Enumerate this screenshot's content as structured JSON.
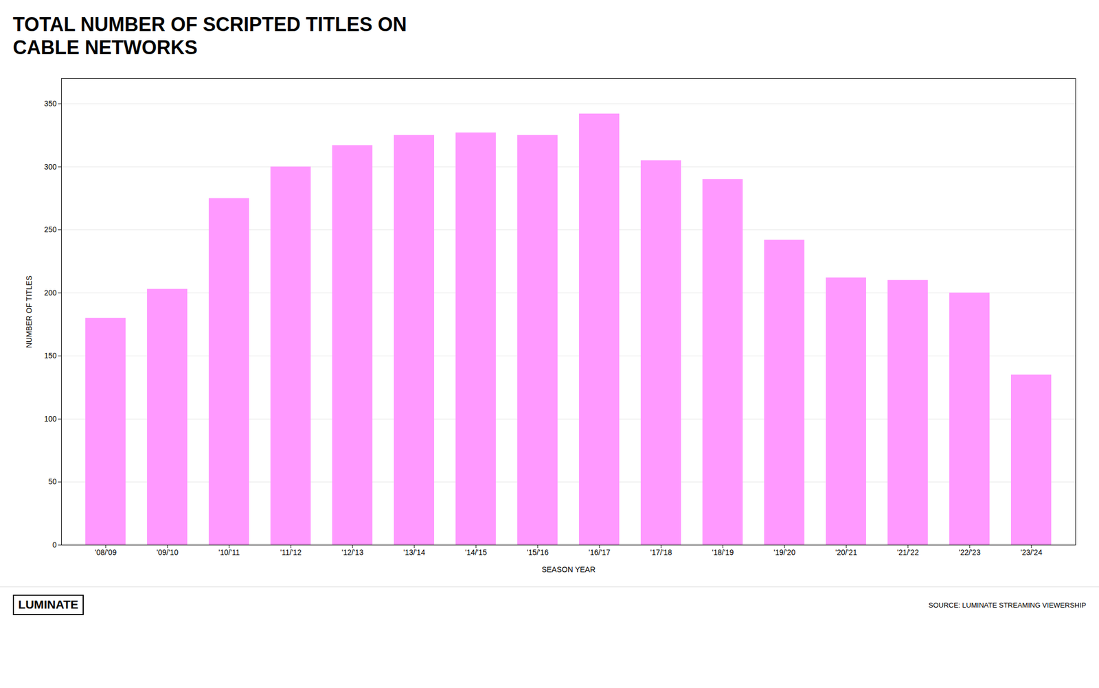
{
  "chart_data": {
    "type": "bar",
    "title": "TOTAL NUMBER OF SCRIPTED TITLES ON\nCABLE NETWORKS",
    "xlabel": "SEASON YEAR",
    "ylabel": "NUMBER OF TITLES",
    "categories": [
      "'08/'09",
      "'09/'10",
      "'10/'11",
      "'11/'12",
      "'12/'13",
      "'13/'14",
      "'14/'15",
      "'15/'16",
      "'16/'17",
      "'17/'18",
      "'18/'19",
      "'19/'20",
      "'20/'21",
      "'21/'22",
      "'22/'23",
      "'23/'24"
    ],
    "values": [
      180,
      203,
      275,
      300,
      317,
      325,
      327,
      325,
      342,
      305,
      290,
      242,
      212,
      210,
      200,
      135
    ],
    "color": "#ff99ff",
    "ylim": [
      0,
      370
    ],
    "yticks": [
      0,
      50,
      100,
      150,
      200,
      250,
      300,
      350
    ],
    "grid": true,
    "annotations": [
      "LUMINATE",
      "SOURCE: LUMINATE STREAMING VIEWERSHIP"
    ]
  }
}
